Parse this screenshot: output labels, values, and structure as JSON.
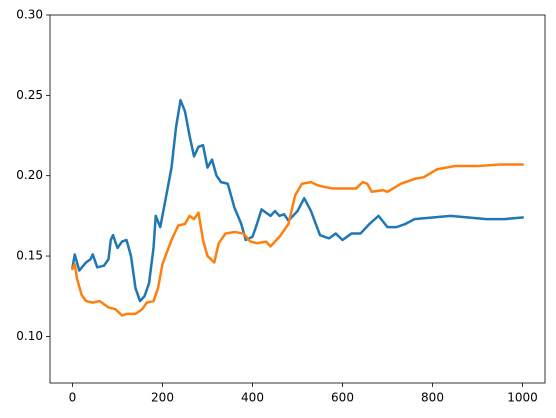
{
  "chart_data": {
    "type": "line",
    "xlim": [
      -50,
      1050
    ],
    "ylim": [
      0.071,
      0.3
    ],
    "xticks": [
      0,
      200,
      400,
      600,
      800,
      1000
    ],
    "yticks": [
      {
        "value": 0.1,
        "label": "0.10"
      },
      0.15,
      {
        "value": 0.2,
        "label": "0.20"
      },
      0.25,
      {
        "value": 0.3,
        "label": "0.30"
      }
    ],
    "series": [
      {
        "color": "#1f77b4",
        "x": [
          0,
          5,
          15,
          30,
          40,
          45,
          55,
          70,
          80,
          85,
          90,
          100,
          110,
          120,
          130,
          140,
          150,
          160,
          170,
          180,
          185,
          195,
          210,
          220,
          230,
          240,
          250,
          260,
          270,
          280,
          290,
          300,
          310,
          320,
          330,
          345,
          360,
          375,
          385,
          400,
          410,
          420,
          430,
          440,
          450,
          460,
          470,
          480,
          500,
          515,
          530,
          550,
          570,
          585,
          600,
          620,
          640,
          660,
          680,
          700,
          720,
          740,
          760,
          800,
          840,
          880,
          920,
          960,
          1000
        ],
        "values": [
          0.143,
          0.151,
          0.141,
          0.146,
          0.148,
          0.151,
          0.143,
          0.144,
          0.148,
          0.16,
          0.163,
          0.155,
          0.159,
          0.16,
          0.15,
          0.13,
          0.122,
          0.125,
          0.133,
          0.155,
          0.175,
          0.168,
          0.19,
          0.205,
          0.23,
          0.247,
          0.24,
          0.225,
          0.212,
          0.218,
          0.219,
          0.205,
          0.21,
          0.2,
          0.196,
          0.195,
          0.18,
          0.17,
          0.16,
          0.162,
          0.17,
          0.179,
          0.177,
          0.175,
          0.178,
          0.175,
          0.176,
          0.172,
          0.178,
          0.186,
          0.178,
          0.163,
          0.161,
          0.164,
          0.16,
          0.164,
          0.164,
          0.17,
          0.175,
          0.168,
          0.168,
          0.17,
          0.173,
          0.174,
          0.175,
          0.174,
          0.173,
          0.173,
          0.174
        ]
      },
      {
        "color": "#ff7f0e",
        "x": [
          0,
          5,
          10,
          20,
          30,
          45,
          60,
          70,
          80,
          95,
          110,
          120,
          140,
          155,
          165,
          180,
          190,
          200,
          220,
          235,
          250,
          260,
          270,
          280,
          290,
          300,
          315,
          325,
          340,
          360,
          380,
          395,
          410,
          430,
          440,
          460,
          480,
          495,
          510,
          530,
          545,
          560,
          580,
          600,
          630,
          645,
          655,
          665,
          690,
          700,
          730,
          760,
          780,
          810,
          850,
          900,
          950,
          1000
        ],
        "values": [
          0.142,
          0.145,
          0.136,
          0.126,
          0.122,
          0.121,
          0.122,
          0.12,
          0.118,
          0.117,
          0.113,
          0.114,
          0.114,
          0.117,
          0.121,
          0.122,
          0.13,
          0.145,
          0.16,
          0.169,
          0.17,
          0.175,
          0.173,
          0.177,
          0.16,
          0.15,
          0.146,
          0.158,
          0.164,
          0.165,
          0.164,
          0.159,
          0.158,
          0.159,
          0.156,
          0.162,
          0.17,
          0.188,
          0.195,
          0.196,
          0.194,
          0.193,
          0.192,
          0.192,
          0.192,
          0.196,
          0.195,
          0.19,
          0.191,
          0.19,
          0.195,
          0.198,
          0.199,
          0.204,
          0.206,
          0.206,
          0.207,
          0.207
        ]
      }
    ]
  }
}
